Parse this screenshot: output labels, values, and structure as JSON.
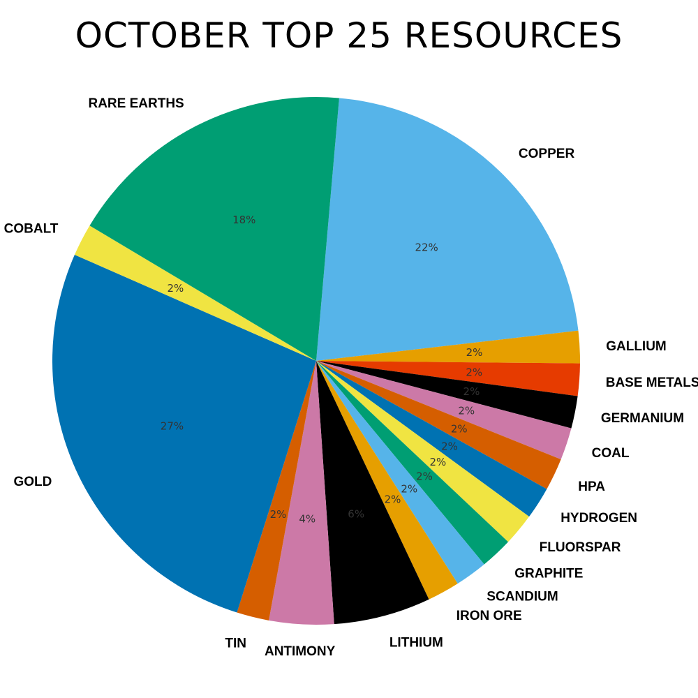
{
  "chart_data": {
    "type": "pie",
    "title": "OCTOBER TOP 25 RESOURCES",
    "slices": [
      {
        "label": "COPPER",
        "value": 22,
        "pct_label": "22%",
        "color": "#56B4E9"
      },
      {
        "label": "GALLIUM",
        "value": 2,
        "pct_label": "2%",
        "color": "#E69F00"
      },
      {
        "label": "BASE METALS",
        "value": 2,
        "pct_label": "2%",
        "color": "#E63B00"
      },
      {
        "label": "GERMANIUM",
        "value": 2,
        "pct_label": "2%",
        "color": "#000000"
      },
      {
        "label": "COAL",
        "value": 2,
        "pct_label": "2%",
        "color": "#CC79A7"
      },
      {
        "label": "HPA",
        "value": 2,
        "pct_label": "2%",
        "color": "#D55E00"
      },
      {
        "label": "HYDROGEN",
        "value": 2,
        "pct_label": "2%",
        "color": "#0072B2"
      },
      {
        "label": "FLUORSPAR",
        "value": 2,
        "pct_label": "2%",
        "color": "#F0E442"
      },
      {
        "label": "GRAPHITE",
        "value": 2,
        "pct_label": "2%",
        "color": "#009E73"
      },
      {
        "label": "SCANDIUM",
        "value": 2,
        "pct_label": "2%",
        "color": "#56B4E9"
      },
      {
        "label": "IRON ORE",
        "value": 2,
        "pct_label": "2%",
        "color": "#E69F00"
      },
      {
        "label": "LITHIUM",
        "value": 6,
        "pct_label": "6%",
        "color": "#000000"
      },
      {
        "label": "ANTIMONY",
        "value": 4,
        "pct_label": "4%",
        "color": "#CC79A7"
      },
      {
        "label": "TIN",
        "value": 2,
        "pct_label": "2%",
        "color": "#D55E00"
      },
      {
        "label": "GOLD",
        "value": 27,
        "pct_label": "27%",
        "color": "#0072B2"
      },
      {
        "label": "COBALT",
        "value": 2,
        "pct_label": "2%",
        "color": "#F0E442"
      },
      {
        "label": "RARE EARTHS",
        "value": 18,
        "pct_label": "18%",
        "color": "#009E73"
      }
    ],
    "start_angle_deg": 85,
    "direction": "clockwise",
    "legend": "none"
  }
}
